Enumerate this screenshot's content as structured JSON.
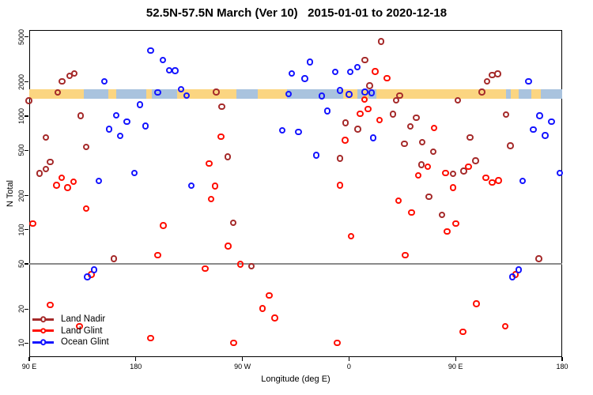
{
  "title": "52.5N-57.5N March (Ver 10)   2015-01-01 to 2020-12-18",
  "chart_data": {
    "type": "scatter",
    "title": "52.5N-57.5N March (Ver 10)   2015-01-01 to 2020-12-18",
    "xlabel": "Longitude (deg E)",
    "ylabel": "N Total",
    "x_axis": {
      "note": "longitude axis wraps eastward from 90E; values run 90..540 deg E",
      "range": [
        90,
        540
      ],
      "ticks": [
        {
          "value": 90,
          "label": "90 E"
        },
        {
          "value": 180,
          "label": "180"
        },
        {
          "value": 270,
          "label": "90 W"
        },
        {
          "value": 360,
          "label": "0"
        },
        {
          "value": 450,
          "label": "90 E"
        },
        {
          "value": 540,
          "label": "180"
        }
      ]
    },
    "y_axis": {
      "scale": "log",
      "range": [
        7.5,
        5700
      ],
      "ticks": [
        5000,
        2000,
        1000,
        500,
        200,
        100,
        50,
        20,
        10
      ]
    },
    "reference_line": {
      "y": 50,
      "color": "#8a8a8a"
    },
    "coast_band": {
      "description": "land/ocean strip for the 52.5N-57.5N latitude band",
      "n_range": [
        1425,
        1730
      ],
      "land_color": "#FBD581",
      "ocean_color": "#A9C3DE",
      "segments": [
        {
          "from": 90,
          "to": 136.1,
          "type": "land"
        },
        {
          "from": 136.1,
          "to": 156.8,
          "type": "ocean"
        },
        {
          "from": 156.8,
          "to": 163.4,
          "type": "land"
        },
        {
          "from": 163.4,
          "to": 188.8,
          "type": "ocean"
        },
        {
          "from": 188.8,
          "to": 193.5,
          "type": "land"
        },
        {
          "from": 193.5,
          "to": 214.8,
          "type": "ocean"
        },
        {
          "from": 214.8,
          "to": 264.9,
          "type": "land"
        },
        {
          "from": 264.9,
          "to": 283.0,
          "type": "ocean"
        },
        {
          "from": 283.0,
          "to": 307.6,
          "type": "land"
        },
        {
          "from": 307.6,
          "to": 355.0,
          "type": "ocean"
        },
        {
          "from": 355.0,
          "to": 367.0,
          "type": "land"
        },
        {
          "from": 367.0,
          "to": 371.7,
          "type": "ocean"
        },
        {
          "from": 371.7,
          "to": 376.4,
          "type": "land"
        },
        {
          "from": 376.4,
          "to": 383.1,
          "type": "ocean"
        },
        {
          "from": 383.1,
          "to": 492.6,
          "type": "land"
        },
        {
          "from": 492.6,
          "to": 496.6,
          "type": "ocean"
        },
        {
          "from": 496.6,
          "to": 503.3,
          "type": "land"
        },
        {
          "from": 503.3,
          "to": 514.0,
          "type": "ocean"
        },
        {
          "from": 514.0,
          "to": 522.0,
          "type": "land"
        },
        {
          "from": 522.0,
          "to": 540.0,
          "type": "ocean"
        }
      ]
    },
    "legend": {
      "position": "bottom-left"
    },
    "series": [
      {
        "name": "Land Nadir",
        "color": "#A52A2A",
        "points": [
          [
            114.5,
            1610
          ],
          [
            118.2,
            2010
          ],
          [
            124.5,
            2250
          ],
          [
            128.3,
            2350
          ],
          [
            90,
            1360
          ],
          [
            133.9,
            1000
          ],
          [
            104.5,
            645
          ],
          [
            138.5,
            530
          ],
          [
            108.2,
            390
          ],
          [
            104.5,
            340
          ],
          [
            98.9,
            310
          ],
          [
            248.4,
            1620
          ],
          [
            252.9,
            1200
          ],
          [
            258,
            435
          ],
          [
            373.7,
            3090
          ],
          [
            387.7,
            4500
          ],
          [
            377.7,
            1840
          ],
          [
            357.5,
            865
          ],
          [
            367.7,
            760
          ],
          [
            352.6,
            420
          ],
          [
            481.2,
            2290
          ],
          [
            486.1,
            2340
          ],
          [
            476.8,
            2000
          ],
          [
            472.7,
            1620
          ],
          [
            403.1,
            1500
          ],
          [
            400,
            1365
          ],
          [
            397.6,
            1030
          ],
          [
            417.1,
            960
          ],
          [
            452.3,
            1365
          ],
          [
            412.3,
            805
          ],
          [
            462.7,
            645
          ],
          [
            492.8,
            1020
          ],
          [
            407.1,
            565
          ],
          [
            422.3,
            585
          ],
          [
            431.6,
            483
          ],
          [
            496.8,
            545
          ],
          [
            467.2,
            400
          ],
          [
            421.6,
            370
          ],
          [
            448.3,
            307
          ],
          [
            457.2,
            325
          ],
          [
            161.9,
            55
          ],
          [
            262.5,
            114
          ],
          [
            278.1,
            47
          ],
          [
            427.8,
            193
          ],
          [
            439,
            134
          ],
          [
            520.6,
            55
          ]
        ]
      },
      {
        "name": "Land Glint",
        "color": "#FF0D00",
        "points": [
          [
            117.8,
            284
          ],
          [
            113.4,
            244
          ],
          [
            122.9,
            232
          ],
          [
            127.9,
            262
          ],
          [
            252.4,
            655
          ],
          [
            242.4,
            380
          ],
          [
            247.3,
            240
          ],
          [
            243.9,
            185
          ],
          [
            382.6,
            2460
          ],
          [
            392.4,
            2140
          ],
          [
            373.3,
            1390
          ],
          [
            376.4,
            1150
          ],
          [
            369.7,
            1040
          ],
          [
            386,
            915
          ],
          [
            357.1,
            610
          ],
          [
            352.6,
            244
          ],
          [
            432.3,
            780
          ],
          [
            427.1,
            355
          ],
          [
            418.9,
            297
          ],
          [
            442,
            313
          ],
          [
            461.2,
            355
          ],
          [
            476.1,
            284
          ],
          [
            481.2,
            259
          ],
          [
            486.7,
            269
          ],
          [
            448.3,
            232
          ],
          [
            138.5,
            152
          ],
          [
            93.3,
            112
          ],
          [
            203.5,
            108
          ],
          [
            199,
            59
          ],
          [
            142.7,
            40
          ],
          [
            108.2,
            21.5
          ],
          [
            132.9,
            14
          ],
          [
            192.8,
            11
          ],
          [
            258.4,
            71
          ],
          [
            362.2,
            87
          ],
          [
            268.7,
            49
          ],
          [
            238.9,
            45
          ],
          [
            293,
            26
          ],
          [
            287.4,
            20
          ],
          [
            297.6,
            16.5
          ],
          [
            262.9,
            10
          ],
          [
            350.4,
            10
          ],
          [
            402,
            178
          ],
          [
            413.3,
            141
          ],
          [
            450.5,
            112
          ],
          [
            443.2,
            96
          ],
          [
            407.8,
            59
          ],
          [
            501,
            40
          ],
          [
            467.9,
            22
          ],
          [
            456.5,
            12.5
          ],
          [
            492.4,
            14
          ]
        ]
      },
      {
        "name": "Ocean Glint",
        "color": "#1414FF",
        "points": [
          [
            153.9,
            2000
          ],
          [
            192.8,
            3740
          ],
          [
            203.1,
            3090
          ],
          [
            208.6,
            2520
          ],
          [
            213.5,
            2500
          ],
          [
            199,
            1610
          ],
          [
            218.4,
            1710
          ],
          [
            223.1,
            1500
          ],
          [
            183.9,
            1250
          ],
          [
            163.9,
            1010
          ],
          [
            172.8,
            890
          ],
          [
            157.9,
            760
          ],
          [
            167.2,
            665
          ],
          [
            188.6,
            810
          ],
          [
            179,
            312
          ],
          [
            149,
            266
          ],
          [
            227.3,
            242
          ],
          [
            327.5,
            2980
          ],
          [
            311.9,
            2360
          ],
          [
            323,
            2130
          ],
          [
            348.9,
            2440
          ],
          [
            361.5,
            2440
          ],
          [
            367.5,
            2670
          ],
          [
            309.2,
            1550
          ],
          [
            337.5,
            1490
          ],
          [
            352.6,
            1670
          ],
          [
            360.4,
            1540
          ],
          [
            373.7,
            1620
          ],
          [
            379.7,
            1590
          ],
          [
            342.2,
            1100
          ],
          [
            304.1,
            740
          ],
          [
            317.7,
            720
          ],
          [
            332.6,
            450
          ],
          [
            380.9,
            640
          ],
          [
            512,
            2010
          ],
          [
            521.5,
            1000
          ],
          [
            531.5,
            885
          ],
          [
            516,
            757
          ],
          [
            526,
            670
          ],
          [
            538.2,
            313
          ],
          [
            507.1,
            267
          ],
          [
            145.2,
            44
          ],
          [
            139.4,
            38
          ],
          [
            503.5,
            44
          ],
          [
            498.4,
            38
          ]
        ]
      }
    ]
  }
}
